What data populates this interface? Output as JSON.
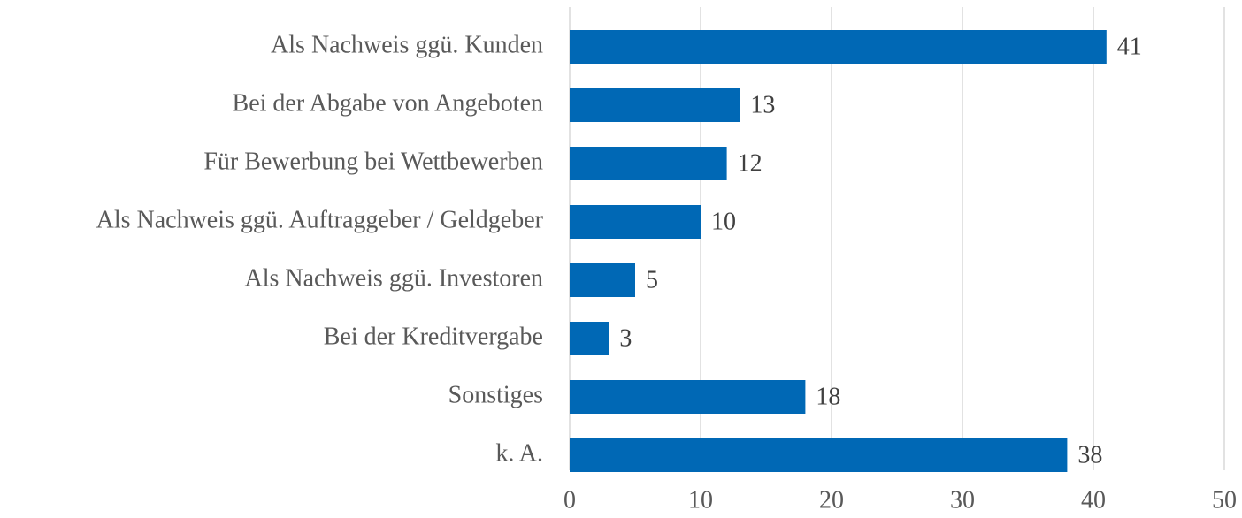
{
  "chart_data": {
    "type": "bar",
    "orientation": "horizontal",
    "categories": [
      "Als Nachweis ggü. Kunden",
      "Bei der Abgabe von Angeboten",
      "Für Bewerbung bei Wettbewerben",
      "Als Nachweis ggü. Auftraggeber / Geldgeber",
      "Als Nachweis ggü. Investoren",
      "Bei der Kreditvergabe",
      "Sonstiges",
      "k. A."
    ],
    "values": [
      41,
      13,
      12,
      10,
      5,
      3,
      18,
      38
    ],
    "color": "#0068b5",
    "xlim": [
      0,
      50
    ],
    "xticks": [
      0,
      10,
      20,
      30,
      40,
      50
    ],
    "grid": true
  }
}
